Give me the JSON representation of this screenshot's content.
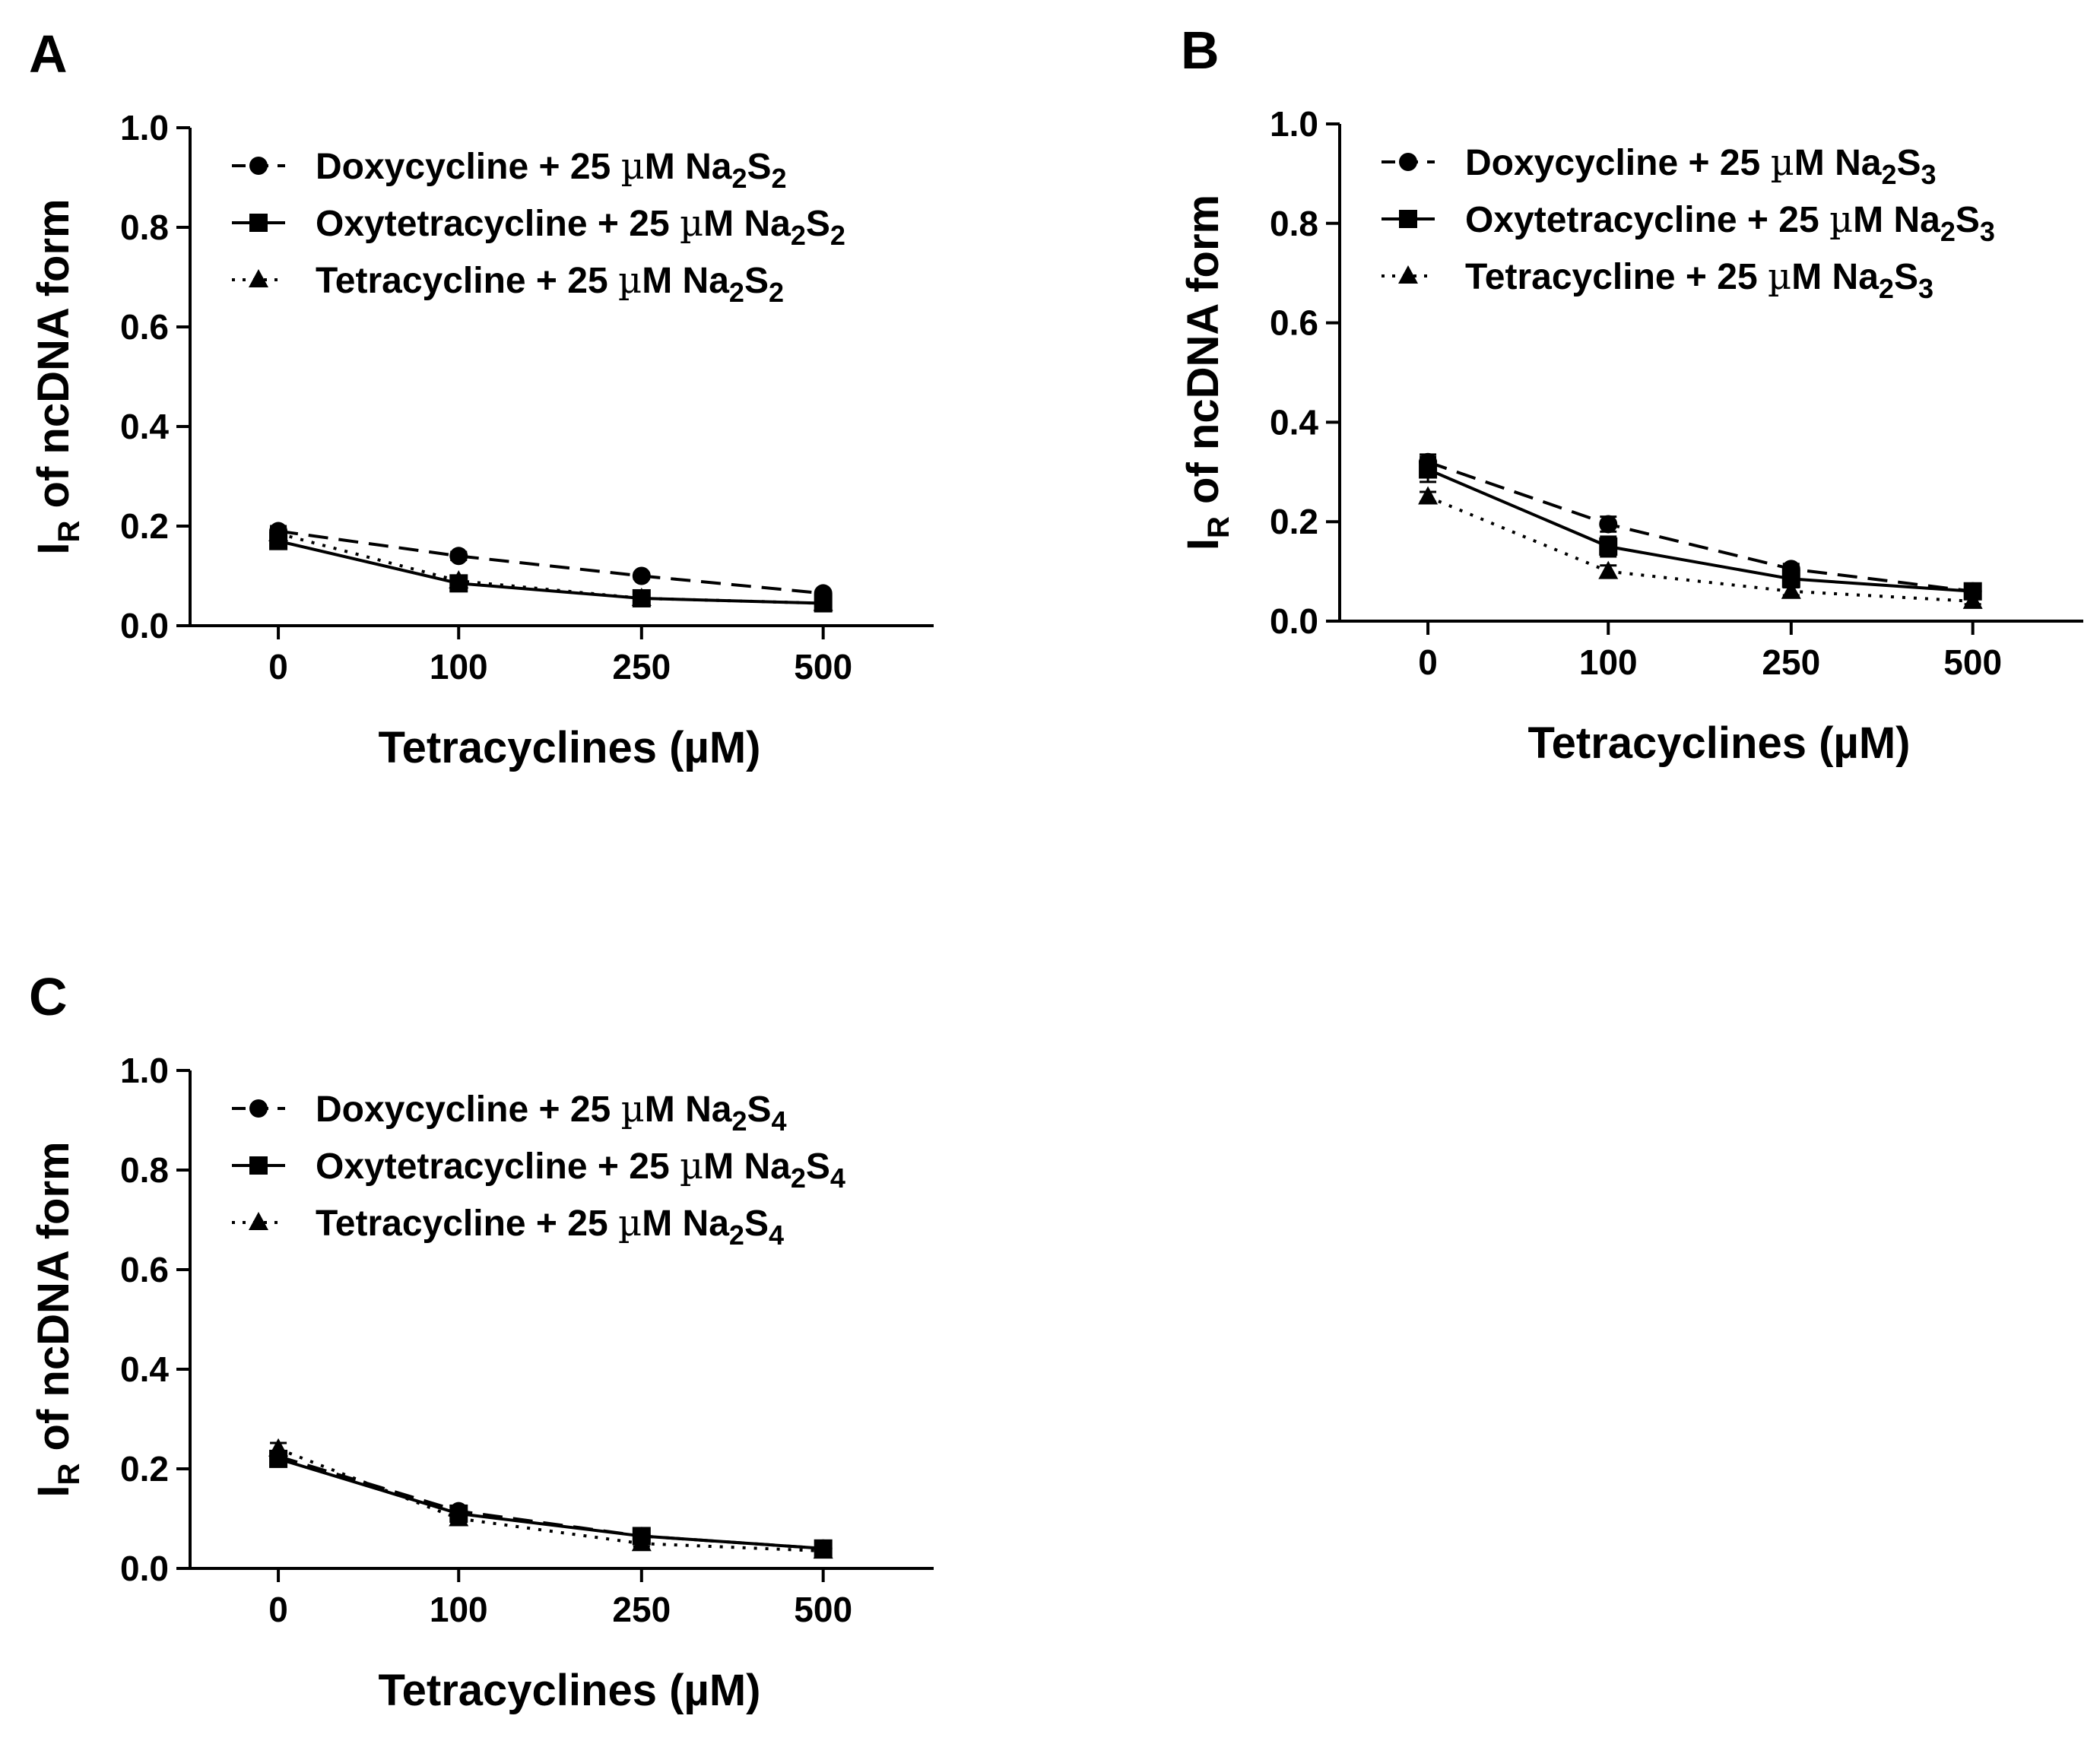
{
  "chart_data": [
    {
      "type": "line",
      "panel": "A",
      "xlabel": "Tetracyclines (µM)",
      "ylabel_main": "I",
      "ylabel_sub": "R",
      "ylabel_rest": " of ncDNA form",
      "x_tick_labels": [
        "0",
        "100",
        "250",
        "500"
      ],
      "y_tick_labels": [
        "0.0",
        "0.2",
        "0.4",
        "0.6",
        "0.8",
        "1.0"
      ],
      "ylim": [
        0,
        1.0
      ],
      "grid": false,
      "legend_position": "top-left",
      "series": [
        {
          "name": "Doxycycline + 25 µM Na₂S₂",
          "marker": "circle",
          "line": "dashed",
          "values": [
            0.19,
            0.14,
            0.1,
            0.065
          ],
          "errors": [
            0.01,
            0.008,
            0.006,
            0.005
          ]
        },
        {
          "name": "Oxytetracycline + 25 µM Na₂S₂",
          "marker": "square",
          "line": "solid",
          "values": [
            0.17,
            0.085,
            0.055,
            0.045
          ],
          "errors": [
            0.015,
            0.008,
            0.006,
            0.005
          ]
        },
        {
          "name": "Tetracycline + 25 µM Na₂S₂",
          "marker": "triangle",
          "line": "dotted",
          "values": [
            0.185,
            0.09,
            0.055,
            0.045
          ],
          "errors": [
            0.012,
            0.008,
            0.006,
            0.005
          ]
        }
      ]
    },
    {
      "type": "line",
      "panel": "B",
      "xlabel": "Tetracyclines (µM)",
      "ylabel_main": "I",
      "ylabel_sub": "R",
      "ylabel_rest": " of ncDNA form",
      "x_tick_labels": [
        "0",
        "100",
        "250",
        "500"
      ],
      "y_tick_labels": [
        "0.0",
        "0.2",
        "0.4",
        "0.6",
        "0.8",
        "1.0"
      ],
      "ylim": [
        0,
        1.0
      ],
      "grid": false,
      "legend_position": "top-left",
      "series": [
        {
          "name": "Doxycycline + 25 µM Na₂S₃",
          "marker": "circle",
          "line": "dashed",
          "values": [
            0.32,
            0.195,
            0.105,
            0.06
          ],
          "errors": [
            0.015,
            0.015,
            0.01,
            0.008
          ]
        },
        {
          "name": "Oxytetracycline + 25 µM Na₂S₃",
          "marker": "square",
          "line": "solid",
          "values": [
            0.305,
            0.15,
            0.085,
            0.06
          ],
          "errors": [
            0.025,
            0.02,
            0.01,
            0.008
          ]
        },
        {
          "name": "Tetracycline + 25 µM Na₂S₃",
          "marker": "triangle",
          "line": "dotted",
          "values": [
            0.25,
            0.1,
            0.06,
            0.04
          ],
          "errors": [
            0.01,
            0.012,
            0.008,
            0.006
          ]
        }
      ]
    },
    {
      "type": "line",
      "panel": "C",
      "xlabel": "Tetracyclines (µM)",
      "ylabel_main": "I",
      "ylabel_sub": "R",
      "ylabel_rest": " of ncDNA form",
      "x_tick_labels": [
        "0",
        "100",
        "250",
        "500"
      ],
      "y_tick_labels": [
        "0.0",
        "0.2",
        "0.4",
        "0.6",
        "0.8",
        "1.0"
      ],
      "ylim": [
        0,
        1.0
      ],
      "grid": false,
      "legend_position": "top-left",
      "series": [
        {
          "name": "Doxycycline + 25 µM Na₂S₄",
          "marker": "circle",
          "line": "dashed",
          "values": [
            0.225,
            0.115,
            0.065,
            0.04
          ],
          "errors": [
            0.01,
            0.008,
            0.006,
            0.005
          ]
        },
        {
          "name": "Oxytetracycline + 25 µM Na₂S₄",
          "marker": "square",
          "line": "solid",
          "values": [
            0.22,
            0.11,
            0.065,
            0.04
          ],
          "errors": [
            0.012,
            0.01,
            0.008,
            0.006
          ]
        },
        {
          "name": "Tetracycline + 25 µM Na₂S₄",
          "marker": "triangle",
          "line": "dotted",
          "values": [
            0.24,
            0.1,
            0.05,
            0.035
          ],
          "errors": [
            0.012,
            0.01,
            0.006,
            0.005
          ]
        }
      ]
    }
  ],
  "legend_parts": [
    [
      {
        "pre": "Doxycycline + 25 ",
        "mu": "µ",
        "mid": "M Na",
        "s1": "2",
        "S": "S",
        "s2": "2"
      },
      {
        "pre": "Oxytetracycline + 25 ",
        "mu": "µ",
        "mid": "M Na",
        "s1": "2",
        "S": "S",
        "s2": "2"
      },
      {
        "pre": "Tetracycline + 25 ",
        "mu": "µ",
        "mid": "M Na",
        "s1": "2",
        "S": "S",
        "s2": "2"
      }
    ],
    [
      {
        "pre": "Doxycycline + 25 ",
        "mu": "µ",
        "mid": "M Na",
        "s1": "2",
        "S": "S",
        "s2": "3"
      },
      {
        "pre": "Oxytetracycline + 25 ",
        "mu": "µ",
        "mid": "M Na",
        "s1": "2",
        "S": "S",
        "s2": "3"
      },
      {
        "pre": "Tetracycline + 25 ",
        "mu": "µ",
        "mid": "M Na",
        "s1": "2",
        "S": "S",
        "s2": "3"
      }
    ],
    [
      {
        "pre": "Doxycycline + 25 ",
        "mu": "µ",
        "mid": "M Na",
        "s1": "2",
        "S": "S",
        "s2": "4"
      },
      {
        "pre": "Oxytetracycline + 25 ",
        "mu": "µ",
        "mid": "M Na",
        "s1": "2",
        "S": "S",
        "s2": "4"
      },
      {
        "pre": "Tetracycline + 25 ",
        "mu": "µ",
        "mid": "M Na",
        "s1": "2",
        "S": "S",
        "s2": "4"
      }
    ]
  ]
}
